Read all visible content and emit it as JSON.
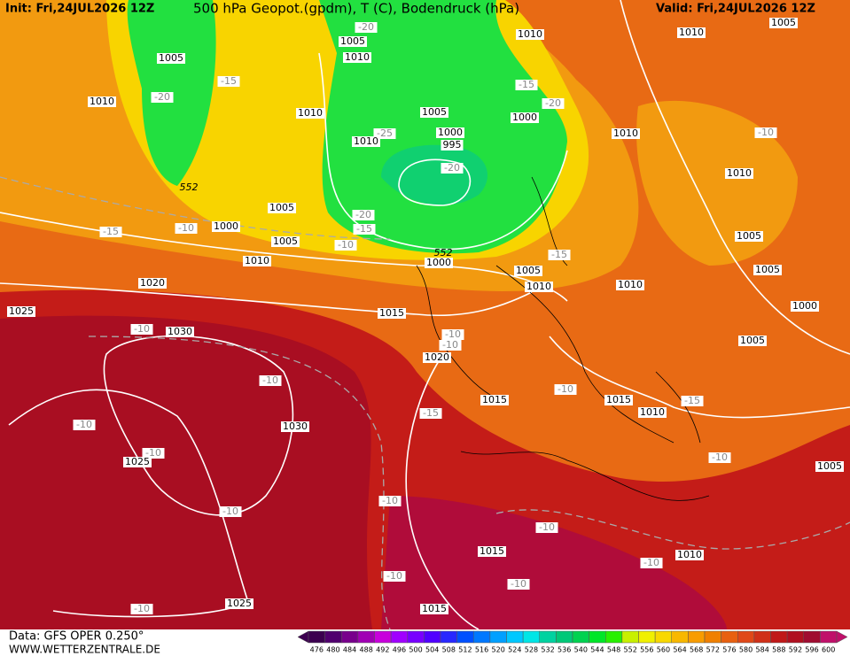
{
  "header": {
    "init": "Init: Fri,24JUL2026 12Z",
    "title": "500 hPa Geopot.(gpdm), T (C), Bodendruck (hPa)",
    "valid": "Valid: Fri,24JUL2026 12Z"
  },
  "footer": {
    "data": "Data: GFS OPER 0.250°",
    "site": "WWW.WETTERZENTRALE.DE"
  },
  "colorbar": {
    "labels": [
      476,
      480,
      484,
      488,
      492,
      496,
      500,
      504,
      508,
      512,
      516,
      520,
      524,
      528,
      532,
      536,
      540,
      544,
      548,
      552,
      556,
      560,
      564,
      568,
      572,
      576,
      580,
      584,
      588,
      592,
      596,
      600
    ],
    "colors": [
      "#3c0050",
      "#50006e",
      "#78008c",
      "#a000b4",
      "#c800dc",
      "#a000ff",
      "#7800ff",
      "#5000ff",
      "#2828ff",
      "#0050ff",
      "#0078ff",
      "#00a0ff",
      "#00c8ff",
      "#00e6e6",
      "#00d2a0",
      "#00c878",
      "#00d250",
      "#00e628",
      "#28f000",
      "#c8f000",
      "#f0f000",
      "#f8d800",
      "#f8b800",
      "#f89c00",
      "#f08000",
      "#e86010",
      "#e04818",
      "#d03018",
      "#c01818",
      "#b01020",
      "#a00c30",
      "#c0106a"
    ]
  },
  "map_labels": [
    "1005",
    "1010",
    "-20",
    "-15",
    "552",
    "-15",
    "-10",
    "1000",
    "1005",
    "1005",
    "1010",
    "-10",
    "1020",
    "1025",
    "1015",
    "-10",
    "1030",
    "-10",
    "-10",
    "1030",
    "-10",
    "1025",
    "-10",
    "-10",
    "1025",
    "-10",
    "-10",
    "1015",
    "1015",
    "-10",
    "-10",
    "-10",
    "1010",
    "-10",
    "1005",
    "-15",
    "1015",
    "1020",
    "-10",
    "-10",
    "-10",
    "1015",
    "1010",
    "-15",
    "1005",
    "1000",
    "1005",
    "1005",
    "1010",
    "-10",
    "1005",
    "1010",
    "1010",
    "1000",
    "-20",
    "-15",
    "1010",
    "1005",
    "1000",
    "995",
    "-20",
    "-25",
    "1010",
    "1010",
    "1010",
    "1005",
    "-20",
    "-20",
    "-15",
    "552",
    "1000",
    "1005",
    "1010",
    "-15",
    "1010"
  ]
}
